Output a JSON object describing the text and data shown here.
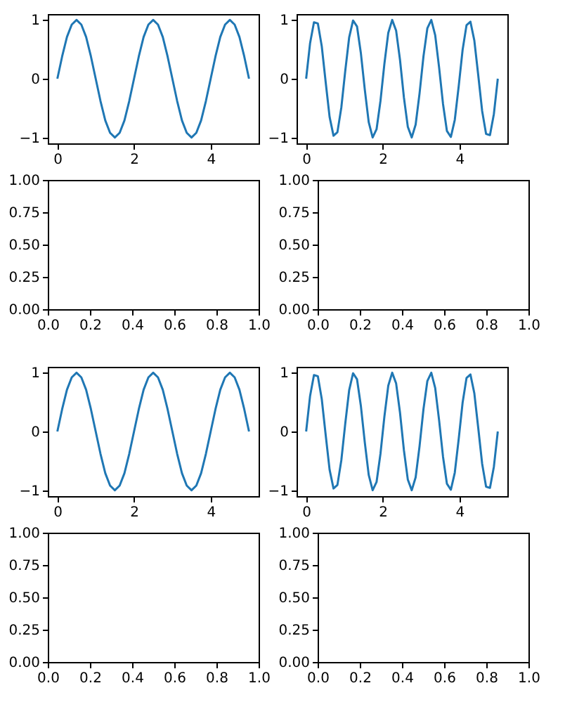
{
  "chart_data": [
    {
      "type": "line",
      "x": [
        0,
        0.125,
        0.25,
        0.375,
        0.5,
        0.625,
        0.75,
        0.875,
        1,
        1.125,
        1.25,
        1.375,
        1.5,
        1.625,
        1.75,
        1.875,
        2,
        2.125,
        2.25,
        2.375,
        2.5,
        2.625,
        2.75,
        2.875,
        3,
        3.125,
        3.25,
        3.375,
        3.5,
        3.625,
        3.75,
        3.875,
        4,
        4.125,
        4.25,
        4.375,
        4.5,
        4.625,
        4.75,
        4.875,
        5
      ],
      "series": [
        {
          "color": "#1f77b4",
          "values": [
            0,
            0.38,
            0.71,
            0.92,
            1,
            0.92,
            0.71,
            0.38,
            0,
            -0.38,
            -0.71,
            -0.92,
            -1,
            -0.92,
            -0.71,
            -0.38,
            0,
            0.38,
            0.71,
            0.92,
            1,
            0.92,
            0.71,
            0.38,
            0,
            -0.38,
            -0.71,
            -0.92,
            -1,
            -0.92,
            -0.71,
            -0.38,
            0,
            0.38,
            0.71,
            0.92,
            1,
            0.92,
            0.71,
            0.38,
            0
          ]
        }
      ],
      "xlim": [
        -0.25,
        5.25
      ],
      "ylim": [
        -1.1,
        1.1
      ],
      "xticks": [
        0,
        2,
        4
      ],
      "yticks": [
        -1,
        0,
        1
      ]
    },
    {
      "type": "line",
      "x": [
        0,
        0.102,
        0.204,
        0.306,
        0.408,
        0.51,
        0.612,
        0.714,
        0.816,
        0.918,
        1.02,
        1.122,
        1.224,
        1.327,
        1.429,
        1.531,
        1.633,
        1.735,
        1.837,
        1.939,
        2.041,
        2.143,
        2.245,
        2.347,
        2.449,
        2.551,
        2.653,
        2.755,
        2.857,
        2.959,
        3.061,
        3.163,
        3.265,
        3.367,
        3.469,
        3.571,
        3.673,
        3.776,
        3.878,
        3.98,
        4.082,
        4.184,
        4.286,
        4.388,
        4.49,
        4.592,
        4.694,
        4.796,
        4.898,
        5
      ],
      "series": [
        {
          "color": "#1f77b4",
          "values": [
            0,
            0.6,
            0.96,
            0.94,
            0.55,
            -0.06,
            -0.65,
            -0.97,
            -0.91,
            -0.49,
            0.13,
            0.7,
            0.99,
            0.89,
            0.43,
            -0.19,
            -0.74,
            -1,
            -0.86,
            -0.38,
            0.25,
            0.78,
            1,
            0.82,
            0.32,
            -0.32,
            -0.82,
            -1,
            -0.78,
            -0.25,
            0.38,
            0.86,
            1,
            0.74,
            0.19,
            -0.43,
            -0.89,
            -0.99,
            -0.7,
            -0.13,
            0.49,
            0.91,
            0.97,
            0.65,
            0.06,
            -0.55,
            -0.94,
            -0.96,
            -0.6,
            0
          ]
        }
      ],
      "xlim": [
        -0.25,
        5.25
      ],
      "ylim": [
        -1.1,
        1.1
      ],
      "xticks": [
        0,
        2,
        4
      ],
      "yticks": [
        -1,
        0,
        1
      ]
    },
    {
      "type": "line",
      "xlim": [
        0,
        1
      ],
      "ylim": [
        0,
        1
      ],
      "xticks": [
        {
          "value": 0,
          "label": "0.0"
        },
        {
          "value": 0.2,
          "label": "0.2"
        },
        {
          "value": 0.4,
          "label": "0.4"
        },
        {
          "value": 0.6,
          "label": "0.6"
        },
        {
          "value": 0.8,
          "label": "0.8"
        },
        {
          "value": 1,
          "label": "1.0"
        }
      ],
      "yticks": [
        {
          "value": 0,
          "label": "0.00"
        },
        {
          "value": 0.25,
          "label": "0.25"
        },
        {
          "value": 0.5,
          "label": "0.50"
        },
        {
          "value": 0.75,
          "label": "0.75"
        },
        {
          "value": 1,
          "label": "1.00"
        }
      ]
    },
    {
      "type": "line",
      "xlim": [
        0,
        1
      ],
      "ylim": [
        0,
        1
      ],
      "xticks": [
        {
          "value": 0,
          "label": "0.0"
        },
        {
          "value": 0.2,
          "label": "0.2"
        },
        {
          "value": 0.4,
          "label": "0.4"
        },
        {
          "value": 0.6,
          "label": "0.6"
        },
        {
          "value": 0.8,
          "label": "0.8"
        },
        {
          "value": 1,
          "label": "1.0"
        }
      ],
      "yticks": [
        {
          "value": 0,
          "label": "0.00"
        },
        {
          "value": 0.25,
          "label": "0.25"
        },
        {
          "value": 0.5,
          "label": "0.50"
        },
        {
          "value": 0.75,
          "label": "0.75"
        },
        {
          "value": 1,
          "label": "1.00"
        }
      ]
    },
    {
      "type": "line",
      "x": [
        0,
        0.125,
        0.25,
        0.375,
        0.5,
        0.625,
        0.75,
        0.875,
        1,
        1.125,
        1.25,
        1.375,
        1.5,
        1.625,
        1.75,
        1.875,
        2,
        2.125,
        2.25,
        2.375,
        2.5,
        2.625,
        2.75,
        2.875,
        3,
        3.125,
        3.25,
        3.375,
        3.5,
        3.625,
        3.75,
        3.875,
        4,
        4.125,
        4.25,
        4.375,
        4.5,
        4.625,
        4.75,
        4.875,
        5
      ],
      "series": [
        {
          "color": "#1f77b4",
          "values": [
            0,
            0.38,
            0.71,
            0.92,
            1,
            0.92,
            0.71,
            0.38,
            0,
            -0.38,
            -0.71,
            -0.92,
            -1,
            -0.92,
            -0.71,
            -0.38,
            0,
            0.38,
            0.71,
            0.92,
            1,
            0.92,
            0.71,
            0.38,
            0,
            -0.38,
            -0.71,
            -0.92,
            -1,
            -0.92,
            -0.71,
            -0.38,
            0,
            0.38,
            0.71,
            0.92,
            1,
            0.92,
            0.71,
            0.38,
            0
          ]
        }
      ],
      "xlim": [
        -0.25,
        5.25
      ],
      "ylim": [
        -1.1,
        1.1
      ],
      "xticks": [
        0,
        2,
        4
      ],
      "yticks": [
        -1,
        0,
        1
      ]
    },
    {
      "type": "line",
      "x": [
        0,
        0.102,
        0.204,
        0.306,
        0.408,
        0.51,
        0.612,
        0.714,
        0.816,
        0.918,
        1.02,
        1.122,
        1.224,
        1.327,
        1.429,
        1.531,
        1.633,
        1.735,
        1.837,
        1.939,
        2.041,
        2.143,
        2.245,
        2.347,
        2.449,
        2.551,
        2.653,
        2.755,
        2.857,
        2.959,
        3.061,
        3.163,
        3.265,
        3.367,
        3.469,
        3.571,
        3.673,
        3.776,
        3.878,
        3.98,
        4.082,
        4.184,
        4.286,
        4.388,
        4.49,
        4.592,
        4.694,
        4.796,
        4.898,
        5
      ],
      "series": [
        {
          "color": "#1f77b4",
          "values": [
            0,
            0.6,
            0.96,
            0.94,
            0.55,
            -0.06,
            -0.65,
            -0.97,
            -0.91,
            -0.49,
            0.13,
            0.7,
            0.99,
            0.89,
            0.43,
            -0.19,
            -0.74,
            -1,
            -0.86,
            -0.38,
            0.25,
            0.78,
            1,
            0.82,
            0.32,
            -0.32,
            -0.82,
            -1,
            -0.78,
            -0.25,
            0.38,
            0.86,
            1,
            0.74,
            0.19,
            -0.43,
            -0.89,
            -0.99,
            -0.7,
            -0.13,
            0.49,
            0.91,
            0.97,
            0.65,
            0.06,
            -0.55,
            -0.94,
            -0.96,
            -0.6,
            0
          ]
        }
      ],
      "xlim": [
        -0.25,
        5.25
      ],
      "ylim": [
        -1.1,
        1.1
      ],
      "xticks": [
        0,
        2,
        4
      ],
      "yticks": [
        -1,
        0,
        1
      ]
    },
    {
      "type": "line",
      "xlim": [
        0,
        1
      ],
      "ylim": [
        0,
        1
      ],
      "xticks": [
        {
          "value": 0,
          "label": "0.0"
        },
        {
          "value": 0.2,
          "label": "0.2"
        },
        {
          "value": 0.4,
          "label": "0.4"
        },
        {
          "value": 0.6,
          "label": "0.6"
        },
        {
          "value": 0.8,
          "label": "0.8"
        },
        {
          "value": 1,
          "label": "1.0"
        }
      ],
      "yticks": [
        {
          "value": 0,
          "label": "0.00"
        },
        {
          "value": 0.25,
          "label": "0.25"
        },
        {
          "value": 0.5,
          "label": "0.50"
        },
        {
          "value": 0.75,
          "label": "0.75"
        },
        {
          "value": 1,
          "label": "1.00"
        }
      ]
    },
    {
      "type": "line",
      "xlim": [
        0,
        1
      ],
      "ylim": [
        0,
        1
      ],
      "xticks": [
        {
          "value": 0,
          "label": "0.0"
        },
        {
          "value": 0.2,
          "label": "0.2"
        },
        {
          "value": 0.4,
          "label": "0.4"
        },
        {
          "value": 0.6,
          "label": "0.6"
        },
        {
          "value": 0.8,
          "label": "0.8"
        },
        {
          "value": 1,
          "label": "1.0"
        }
      ],
      "yticks": [
        {
          "value": 0,
          "label": "0.00"
        },
        {
          "value": 0.25,
          "label": "0.25"
        },
        {
          "value": 0.5,
          "label": "0.50"
        },
        {
          "value": 0.75,
          "label": "0.75"
        },
        {
          "value": 1,
          "label": "1.00"
        }
      ]
    }
  ]
}
